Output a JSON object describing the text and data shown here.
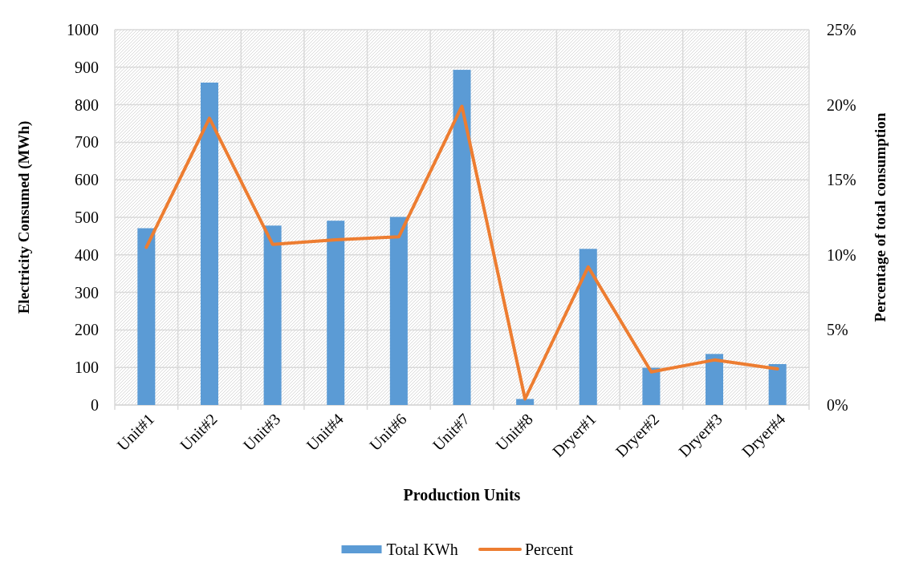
{
  "chart_data": {
    "type": "bar",
    "xlabel": "Production Units",
    "ylabel": "Electricity Consumed (MWh)",
    "y2label": "Percentage of total consumption",
    "categories": [
      "Unit#1",
      "Unit#2",
      "Unit#3",
      "Unit#4",
      "Unit#6",
      "Unit#7",
      "Unit#8",
      "Dryer#1",
      "Dryer#2",
      "Dryer#3",
      "Dryer#4"
    ],
    "series": [
      {
        "name": "Total KWh",
        "color": "#5b9bd5",
        "values": [
          471,
          859,
          478,
          491,
          501,
          893,
          16,
          416,
          99,
          136,
          109
        ]
      },
      {
        "name": "Percent",
        "type": "line",
        "axis": "y2",
        "color": "#ed7d31",
        "values": [
          10.5,
          19.1,
          10.7,
          11.0,
          11.2,
          19.9,
          0.4,
          9.2,
          2.2,
          3.0,
          2.4
        ]
      }
    ],
    "ylim": [
      0,
      1000
    ],
    "yticks": [
      0,
      100,
      200,
      300,
      400,
      500,
      600,
      700,
      800,
      900,
      1000
    ],
    "y2lim": [
      0,
      25
    ],
    "y2ticks": [
      {
        "value": 0,
        "label": "0%"
      },
      {
        "value": 5,
        "label": "5%"
      },
      {
        "value": 10,
        "label": "10%"
      },
      {
        "value": 15,
        "label": "15%"
      },
      {
        "value": 20,
        "label": "20%"
      },
      {
        "value": 25,
        "label": "25%"
      }
    ],
    "grid": true,
    "legend": "bottom"
  }
}
